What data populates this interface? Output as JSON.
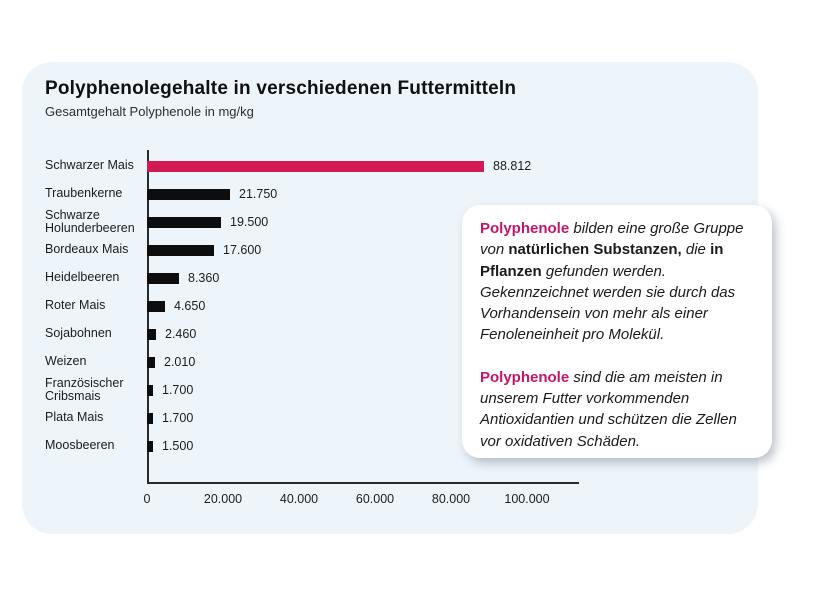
{
  "page": {
    "background": "#ffffff",
    "panel_background": "#edf5fb"
  },
  "colors": {
    "accent_bar": "#d11a52",
    "accent_text": "#c3156b",
    "bar_black": "#0d0d0d"
  },
  "header": {
    "title": "Polyphenolegehalte in verschiedenen Futtermitteln",
    "subtitle": "Gesamtgehalt Polyphenole in mg/kg"
  },
  "chart_data": {
    "type": "bar",
    "orientation": "horizontal",
    "title": "Polyphenolegehalte in verschiedenen Futtermitteln",
    "subtitle": "Gesamtgehalt Polyphenole in mg/kg",
    "xlabel": "",
    "ylabel": "",
    "xlim": [
      0,
      100000
    ],
    "x_ticks": [
      "0",
      "20.000",
      "40.000",
      "60.000",
      "80.000",
      "100.000"
    ],
    "x_tick_values": [
      0,
      20000,
      40000,
      60000,
      80000,
      100000
    ],
    "grid": false,
    "legend": false,
    "rows": [
      {
        "label": "Schwarzer Mais",
        "value": 88812,
        "value_label": "88.812",
        "color": "accent"
      },
      {
        "label": "Traubenkerne",
        "value": 21750,
        "value_label": "21.750",
        "color": "black"
      },
      {
        "label": "Schwarze Holunderbeeren",
        "value": 19500,
        "value_label": "19.500",
        "color": "black"
      },
      {
        "label": "Bordeaux Mais",
        "value": 17600,
        "value_label": "17.600",
        "color": "black"
      },
      {
        "label": "Heidelbeeren",
        "value": 8360,
        "value_label": "8.360",
        "color": "black"
      },
      {
        "label": "Roter Mais",
        "value": 4650,
        "value_label": "4.650",
        "color": "black"
      },
      {
        "label": "Sojabohnen",
        "value": 2460,
        "value_label": "2.460",
        "color": "black"
      },
      {
        "label": "Weizen",
        "value": 2010,
        "value_label": "2.010",
        "color": "black"
      },
      {
        "label": "Französischer Cribsmais",
        "value": 1700,
        "value_label": "1.700",
        "color": "black"
      },
      {
        "label": "Plata Mais",
        "value": 1700,
        "value_label": "1.700",
        "color": "black"
      },
      {
        "label": "Moosbeeren",
        "value": 1500,
        "value_label": "1.500",
        "color": "black"
      }
    ]
  },
  "textbox": {
    "paragraphs": [
      {
        "segments": [
          {
            "text": "Polyphenole",
            "style": "accent-bold"
          },
          {
            "text": " bilden eine große Gruppe von ",
            "style": "italic"
          },
          {
            "text": "natürlichen Substanzen,",
            "style": "bold"
          },
          {
            "text": " die ",
            "style": "italic"
          },
          {
            "text": "in Pflanzen",
            "style": "bold"
          },
          {
            "text": " gefunden werden. Gekennzeichnet werden sie durch das Vorhandensein von mehr als einer Fenoleneinheit pro Molekül.",
            "style": "italic"
          }
        ]
      },
      {
        "segments": [
          {
            "text": "Polyphenole",
            "style": "accent-bold"
          },
          {
            "text": " sind die am meisten in unserem Futter vorkommenden Antioxidantien und schützen die Zellen vor oxidativen Schäden.",
            "style": "italic"
          }
        ]
      }
    ]
  }
}
